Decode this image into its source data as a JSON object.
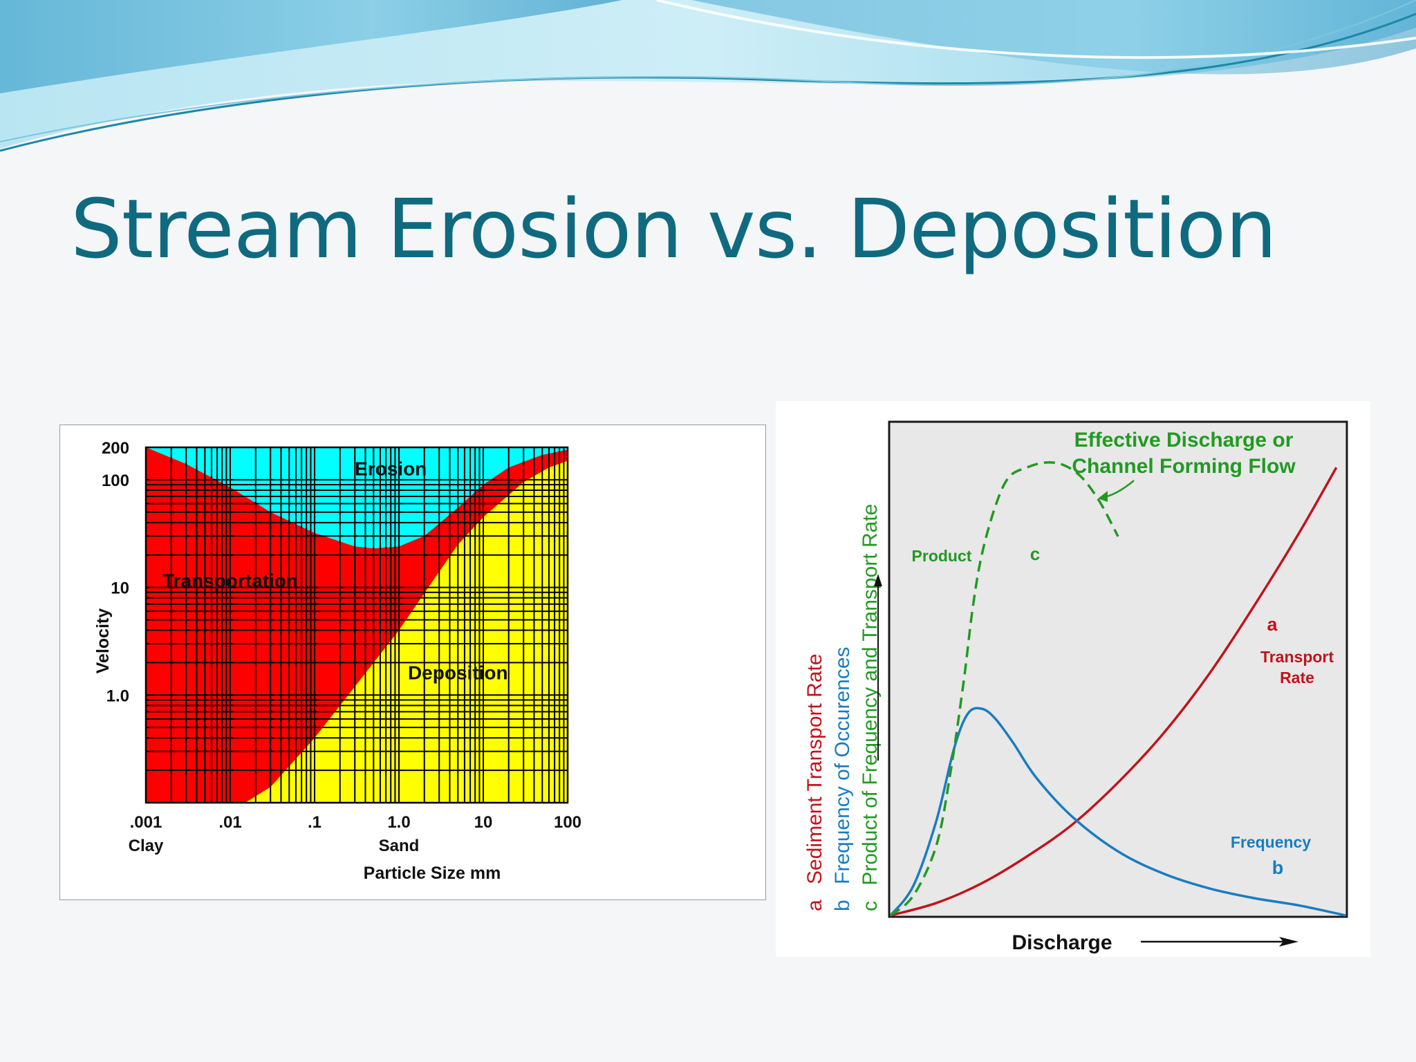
{
  "slide": {
    "title": "Stream Erosion vs. Deposition",
    "colors": {
      "title": "#0f6a80",
      "banner_light": "#bfe9f5",
      "banner_dark": "#5fb3d6"
    }
  },
  "chart_data": [
    {
      "type": "area",
      "title": "",
      "xlabel": "Particle Size mm",
      "ylabel": "Velocity",
      "x_scale": "log",
      "y_scale": "log",
      "xlim": [
        0.001,
        100
      ],
      "ylim": [
        0.1,
        200
      ],
      "x_ticks": [
        {
          "value": 0.001,
          "label": ".001"
        },
        {
          "value": 0.01,
          "label": ".01"
        },
        {
          "value": 0.1,
          "label": ".1"
        },
        {
          "value": 1,
          "label": "1.0"
        },
        {
          "value": 10,
          "label": "10"
        },
        {
          "value": 100,
          "label": "100"
        }
      ],
      "x_category_labels": [
        {
          "value": 0.001,
          "label": "Clay"
        },
        {
          "value": 1,
          "label": "Sand"
        }
      ],
      "y_ticks": [
        {
          "value": 200,
          "label": "200"
        },
        {
          "value": 100,
          "label": "100"
        },
        {
          "value": 10,
          "label": "10"
        },
        {
          "value": 1,
          "label": "1.0"
        }
      ],
      "grid": true,
      "regions": [
        {
          "name": "Erosion",
          "color": "#00ffff"
        },
        {
          "name": "Transportation",
          "color": "#ff0000"
        },
        {
          "name": "Deposition",
          "color": "#ffff00"
        }
      ],
      "erosion_boundary": {
        "x": [
          0.001,
          0.003,
          0.01,
          0.03,
          0.1,
          0.3,
          0.5,
          1,
          2,
          5,
          10,
          20,
          50,
          100
        ],
        "y": [
          200,
          140,
          85,
          50,
          32,
          24,
          23,
          24,
          30,
          55,
          90,
          130,
          170,
          190
        ]
      },
      "deposition_boundary": {
        "x": [
          0.015,
          0.03,
          0.1,
          0.3,
          1,
          3,
          5,
          10,
          30,
          60,
          100
        ],
        "y": [
          0.1,
          0.14,
          0.4,
          1.2,
          4,
          14,
          25,
          45,
          95,
          130,
          150
        ]
      },
      "region_labels": [
        {
          "text": "Erosion",
          "x": 0.8,
          "y": 110
        },
        {
          "text": "Transportation",
          "x": 0.01,
          "y": 10
        },
        {
          "text": "Deposition",
          "x": 5,
          "y": 1.4
        }
      ]
    },
    {
      "type": "line",
      "title": "",
      "xlabel": "Discharge",
      "ylabel": "",
      "xlim": [
        0,
        100
      ],
      "ylim": [
        0,
        100
      ],
      "y_labels": [
        {
          "letter": "a",
          "text": "Sediment Transport Rate",
          "color": "#c0141c"
        },
        {
          "letter": "b",
          "text": "Frequency of Occurences",
          "color": "#1a7cc0"
        },
        {
          "letter": "c",
          "text": "Product of Frequency and Transport Rate",
          "color": "#219a21"
        }
      ],
      "series": [
        {
          "letter": "a",
          "color": "#c0141c",
          "style": "solid",
          "x": [
            0,
            10,
            20,
            30,
            40,
            50,
            60,
            70,
            80,
            90,
            98
          ],
          "y": [
            0,
            2.5,
            6.5,
            12,
            18.5,
            27,
            37,
            49,
            63,
            78,
            91
          ]
        },
        {
          "letter": "b",
          "color": "#1a7cc0",
          "style": "solid",
          "x": [
            0,
            5,
            10,
            14,
            17,
            20,
            23,
            27,
            32,
            40,
            50,
            60,
            70,
            80,
            90,
            100
          ],
          "y": [
            0,
            6,
            19,
            34,
            41,
            42,
            40,
            35,
            28,
            20,
            13,
            8.5,
            5.5,
            3.5,
            2,
            0
          ]
        },
        {
          "letter": "c",
          "color": "#219a21",
          "style": "dashed",
          "x": [
            0,
            5,
            10,
            13,
            16,
            18,
            20,
            23,
            26,
            30,
            34,
            38,
            42,
            46,
            50
          ],
          "y": [
            0,
            4,
            14,
            28,
            47,
            62,
            73,
            83,
            89,
            91,
            92,
            91.5,
            89,
            84,
            77
          ]
        }
      ],
      "annotations": [
        {
          "id": "effective_line1",
          "text": "Effective Discharge or",
          "color": "#219a21"
        },
        {
          "id": "effective_line2",
          "text": "Channel Forming Flow",
          "color": "#219a21"
        },
        {
          "id": "product_label",
          "text": "Product",
          "color": "#219a21"
        },
        {
          "id": "product_letter",
          "text": "c",
          "color": "#219a21"
        },
        {
          "id": "transport_letter",
          "text": "a",
          "color": "#c0141c"
        },
        {
          "id": "transport_line1",
          "text": "Transport",
          "color": "#c0141c"
        },
        {
          "id": "transport_line2",
          "text": "Rate",
          "color": "#c0141c"
        },
        {
          "id": "frequency_label",
          "text": "Frequency",
          "color": "#1a7cc0"
        },
        {
          "id": "frequency_letter",
          "text": "b",
          "color": "#1a7cc0"
        }
      ]
    }
  ]
}
